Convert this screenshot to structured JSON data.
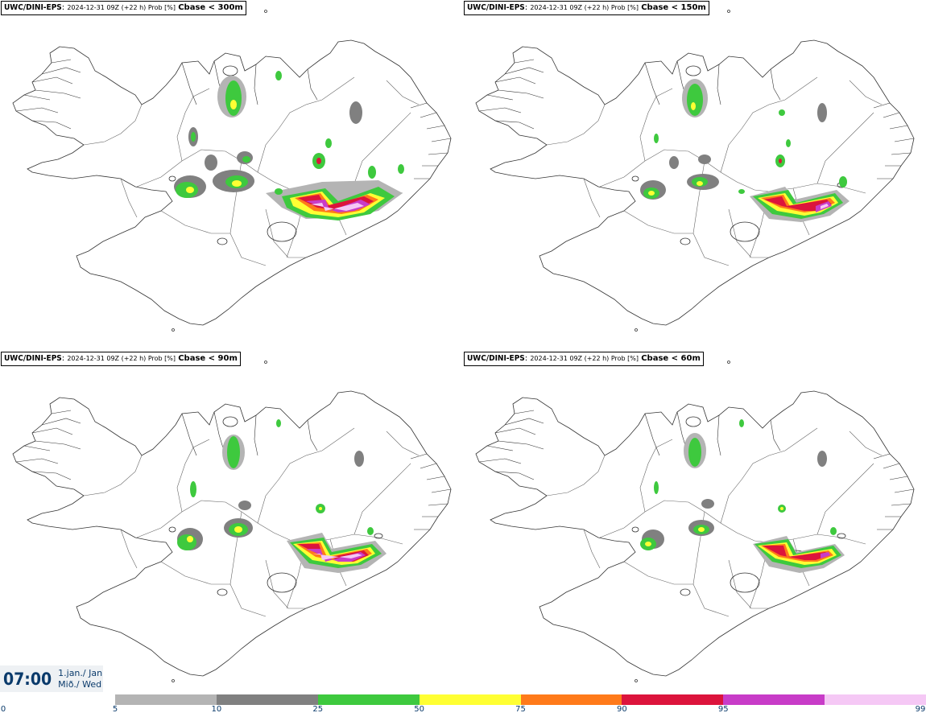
{
  "panels": [
    {
      "model": "UWC/DINI-EPS",
      "meta": "2024-12-31 09Z (+22 h) Prob [%]",
      "threshold": "Cbase < 300m"
    },
    {
      "model": "UWC/DINI-EPS",
      "meta": "2024-12-31 09Z (+22 h) Prob [%]",
      "threshold": "Cbase < 150m"
    },
    {
      "model": "UWC/DINI-EPS",
      "meta": "2024-12-31 09Z (+22 h) Prob [%]",
      "threshold": "Cbase < 90m"
    },
    {
      "model": "UWC/DINI-EPS",
      "meta": "2024-12-31 09Z (+22 h) Prob [%]",
      "threshold": "Cbase < 60m"
    }
  ],
  "time": {
    "clock": "07:00",
    "date_line1": "1.jan./ Jan",
    "date_line2": "Mið./ Wed"
  },
  "legend": {
    "ticks": [
      "0",
      "5",
      "10",
      "25",
      "50",
      "75",
      "90",
      "95",
      "99"
    ],
    "colors": [
      "#b4b4b4",
      "#808080",
      "#3ec93e",
      "#ffff33",
      "#ff7a1a",
      "#dc143c",
      "#c83cc8",
      "#f5c8f5"
    ]
  }
}
